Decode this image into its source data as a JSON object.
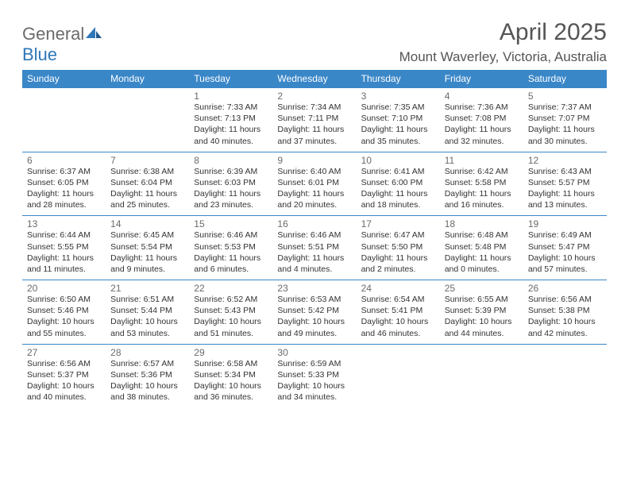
{
  "logo": {
    "word1": "General",
    "word2": "Blue"
  },
  "title": "April 2025",
  "location": "Mount Waverley, Victoria, Australia",
  "colors": {
    "header_bg": "#3a87c8",
    "header_text": "#ffffff",
    "border": "#3a87c8",
    "daynum": "#6b6b6b",
    "body_text": "#333333",
    "logo_gray": "#6b6b6b",
    "logo_blue": "#2e77b8",
    "title_color": "#555555"
  },
  "weekdays": [
    "Sunday",
    "Monday",
    "Tuesday",
    "Wednesday",
    "Thursday",
    "Friday",
    "Saturday"
  ],
  "weeks": [
    [
      null,
      null,
      {
        "n": "1",
        "sunrise": "Sunrise: 7:33 AM",
        "sunset": "Sunset: 7:13 PM",
        "day1": "Daylight: 11 hours",
        "day2": "and 40 minutes."
      },
      {
        "n": "2",
        "sunrise": "Sunrise: 7:34 AM",
        "sunset": "Sunset: 7:11 PM",
        "day1": "Daylight: 11 hours",
        "day2": "and 37 minutes."
      },
      {
        "n": "3",
        "sunrise": "Sunrise: 7:35 AM",
        "sunset": "Sunset: 7:10 PM",
        "day1": "Daylight: 11 hours",
        "day2": "and 35 minutes."
      },
      {
        "n": "4",
        "sunrise": "Sunrise: 7:36 AM",
        "sunset": "Sunset: 7:08 PM",
        "day1": "Daylight: 11 hours",
        "day2": "and 32 minutes."
      },
      {
        "n": "5",
        "sunrise": "Sunrise: 7:37 AM",
        "sunset": "Sunset: 7:07 PM",
        "day1": "Daylight: 11 hours",
        "day2": "and 30 minutes."
      }
    ],
    [
      {
        "n": "6",
        "sunrise": "Sunrise: 6:37 AM",
        "sunset": "Sunset: 6:05 PM",
        "day1": "Daylight: 11 hours",
        "day2": "and 28 minutes."
      },
      {
        "n": "7",
        "sunrise": "Sunrise: 6:38 AM",
        "sunset": "Sunset: 6:04 PM",
        "day1": "Daylight: 11 hours",
        "day2": "and 25 minutes."
      },
      {
        "n": "8",
        "sunrise": "Sunrise: 6:39 AM",
        "sunset": "Sunset: 6:03 PM",
        "day1": "Daylight: 11 hours",
        "day2": "and 23 minutes."
      },
      {
        "n": "9",
        "sunrise": "Sunrise: 6:40 AM",
        "sunset": "Sunset: 6:01 PM",
        "day1": "Daylight: 11 hours",
        "day2": "and 20 minutes."
      },
      {
        "n": "10",
        "sunrise": "Sunrise: 6:41 AM",
        "sunset": "Sunset: 6:00 PM",
        "day1": "Daylight: 11 hours",
        "day2": "and 18 minutes."
      },
      {
        "n": "11",
        "sunrise": "Sunrise: 6:42 AM",
        "sunset": "Sunset: 5:58 PM",
        "day1": "Daylight: 11 hours",
        "day2": "and 16 minutes."
      },
      {
        "n": "12",
        "sunrise": "Sunrise: 6:43 AM",
        "sunset": "Sunset: 5:57 PM",
        "day1": "Daylight: 11 hours",
        "day2": "and 13 minutes."
      }
    ],
    [
      {
        "n": "13",
        "sunrise": "Sunrise: 6:44 AM",
        "sunset": "Sunset: 5:55 PM",
        "day1": "Daylight: 11 hours",
        "day2": "and 11 minutes."
      },
      {
        "n": "14",
        "sunrise": "Sunrise: 6:45 AM",
        "sunset": "Sunset: 5:54 PM",
        "day1": "Daylight: 11 hours",
        "day2": "and 9 minutes."
      },
      {
        "n": "15",
        "sunrise": "Sunrise: 6:46 AM",
        "sunset": "Sunset: 5:53 PM",
        "day1": "Daylight: 11 hours",
        "day2": "and 6 minutes."
      },
      {
        "n": "16",
        "sunrise": "Sunrise: 6:46 AM",
        "sunset": "Sunset: 5:51 PM",
        "day1": "Daylight: 11 hours",
        "day2": "and 4 minutes."
      },
      {
        "n": "17",
        "sunrise": "Sunrise: 6:47 AM",
        "sunset": "Sunset: 5:50 PM",
        "day1": "Daylight: 11 hours",
        "day2": "and 2 minutes."
      },
      {
        "n": "18",
        "sunrise": "Sunrise: 6:48 AM",
        "sunset": "Sunset: 5:48 PM",
        "day1": "Daylight: 11 hours",
        "day2": "and 0 minutes."
      },
      {
        "n": "19",
        "sunrise": "Sunrise: 6:49 AM",
        "sunset": "Sunset: 5:47 PM",
        "day1": "Daylight: 10 hours",
        "day2": "and 57 minutes."
      }
    ],
    [
      {
        "n": "20",
        "sunrise": "Sunrise: 6:50 AM",
        "sunset": "Sunset: 5:46 PM",
        "day1": "Daylight: 10 hours",
        "day2": "and 55 minutes."
      },
      {
        "n": "21",
        "sunrise": "Sunrise: 6:51 AM",
        "sunset": "Sunset: 5:44 PM",
        "day1": "Daylight: 10 hours",
        "day2": "and 53 minutes."
      },
      {
        "n": "22",
        "sunrise": "Sunrise: 6:52 AM",
        "sunset": "Sunset: 5:43 PM",
        "day1": "Daylight: 10 hours",
        "day2": "and 51 minutes."
      },
      {
        "n": "23",
        "sunrise": "Sunrise: 6:53 AM",
        "sunset": "Sunset: 5:42 PM",
        "day1": "Daylight: 10 hours",
        "day2": "and 49 minutes."
      },
      {
        "n": "24",
        "sunrise": "Sunrise: 6:54 AM",
        "sunset": "Sunset: 5:41 PM",
        "day1": "Daylight: 10 hours",
        "day2": "and 46 minutes."
      },
      {
        "n": "25",
        "sunrise": "Sunrise: 6:55 AM",
        "sunset": "Sunset: 5:39 PM",
        "day1": "Daylight: 10 hours",
        "day2": "and 44 minutes."
      },
      {
        "n": "26",
        "sunrise": "Sunrise: 6:56 AM",
        "sunset": "Sunset: 5:38 PM",
        "day1": "Daylight: 10 hours",
        "day2": "and 42 minutes."
      }
    ],
    [
      {
        "n": "27",
        "sunrise": "Sunrise: 6:56 AM",
        "sunset": "Sunset: 5:37 PM",
        "day1": "Daylight: 10 hours",
        "day2": "and 40 minutes."
      },
      {
        "n": "28",
        "sunrise": "Sunrise: 6:57 AM",
        "sunset": "Sunset: 5:36 PM",
        "day1": "Daylight: 10 hours",
        "day2": "and 38 minutes."
      },
      {
        "n": "29",
        "sunrise": "Sunrise: 6:58 AM",
        "sunset": "Sunset: 5:34 PM",
        "day1": "Daylight: 10 hours",
        "day2": "and 36 minutes."
      },
      {
        "n": "30",
        "sunrise": "Sunrise: 6:59 AM",
        "sunset": "Sunset: 5:33 PM",
        "day1": "Daylight: 10 hours",
        "day2": "and 34 minutes."
      },
      null,
      null,
      null
    ]
  ]
}
